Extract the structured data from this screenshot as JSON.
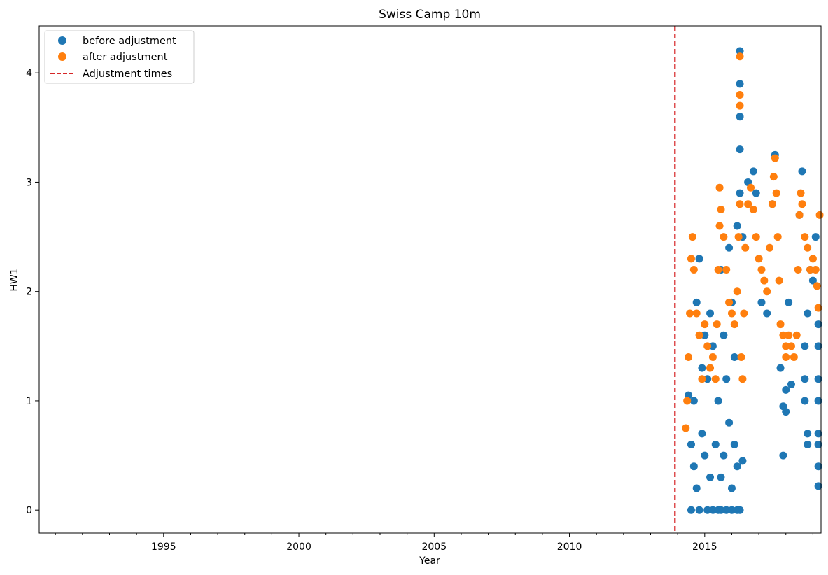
{
  "chart_data": {
    "type": "scatter",
    "title": "Swiss Camp 10m",
    "xlabel": "Year",
    "ylabel": "HW1",
    "xlim": [
      1990.4,
      2019.3
    ],
    "ylim": [
      -0.21,
      4.43
    ],
    "x_ticks": [
      1995,
      2000,
      2005,
      2010,
      2015
    ],
    "x_tick_labels": [
      "1995",
      "2000",
      "2005",
      "2010",
      "2015"
    ],
    "y_ticks": [
      0,
      1,
      2,
      3,
      4
    ],
    "y_tick_labels": [
      "0",
      "1",
      "2",
      "3",
      "4"
    ],
    "grid": false,
    "legend_position": "top-left",
    "series": [
      {
        "name": "before adjustment",
        "kind": "scatter",
        "color": "#1f77b4",
        "points": [
          [
            2014.4,
            1.05
          ],
          [
            2014.5,
            0.6
          ],
          [
            2014.5,
            0.0
          ],
          [
            2014.6,
            1.0
          ],
          [
            2014.6,
            0.4
          ],
          [
            2014.7,
            1.9
          ],
          [
            2014.7,
            0.2
          ],
          [
            2014.8,
            2.3
          ],
          [
            2014.8,
            0.0
          ],
          [
            2014.9,
            1.3
          ],
          [
            2014.9,
            0.7
          ],
          [
            2015.0,
            1.6
          ],
          [
            2015.0,
            0.5
          ],
          [
            2015.1,
            0.0
          ],
          [
            2015.1,
            1.2
          ],
          [
            2015.2,
            0.3
          ],
          [
            2015.2,
            1.8
          ],
          [
            2015.3,
            0.0
          ],
          [
            2015.3,
            1.5
          ],
          [
            2015.4,
            0.6
          ],
          [
            2015.5,
            0.0
          ],
          [
            2015.5,
            1.0
          ],
          [
            2015.6,
            2.2
          ],
          [
            2015.6,
            0.0
          ],
          [
            2015.6,
            0.3
          ],
          [
            2015.7,
            0.5
          ],
          [
            2015.7,
            1.6
          ],
          [
            2015.8,
            0.0
          ],
          [
            2015.8,
            1.2
          ],
          [
            2015.9,
            2.4
          ],
          [
            2015.9,
            0.8
          ],
          [
            2016.0,
            1.9
          ],
          [
            2016.0,
            0.2
          ],
          [
            2016.0,
            0.0
          ],
          [
            2016.1,
            1.4
          ],
          [
            2016.1,
            0.6
          ],
          [
            2016.2,
            2.6
          ],
          [
            2016.2,
            0.0
          ],
          [
            2016.2,
            0.4
          ],
          [
            2016.3,
            3.3
          ],
          [
            2016.3,
            3.6
          ],
          [
            2016.3,
            4.2
          ],
          [
            2016.3,
            3.9
          ],
          [
            2016.3,
            2.9
          ],
          [
            2016.3,
            0.0
          ],
          [
            2016.4,
            0.45
          ],
          [
            2016.4,
            2.5
          ],
          [
            2016.6,
            3.0
          ],
          [
            2016.8,
            3.1
          ],
          [
            2016.9,
            2.9
          ],
          [
            2017.1,
            1.9
          ],
          [
            2017.3,
            1.8
          ],
          [
            2017.5,
            2.8
          ],
          [
            2017.6,
            3.25
          ],
          [
            2017.8,
            1.3
          ],
          [
            2017.9,
            0.5
          ],
          [
            2017.9,
            0.95
          ],
          [
            2018.0,
            0.9
          ],
          [
            2018.0,
            1.1
          ],
          [
            2018.1,
            1.9
          ],
          [
            2018.2,
            1.15
          ],
          [
            2018.5,
            2.7
          ],
          [
            2018.6,
            3.1
          ],
          [
            2018.7,
            1.5
          ],
          [
            2018.7,
            1.2
          ],
          [
            2018.7,
            1.0
          ],
          [
            2018.8,
            1.8
          ],
          [
            2018.8,
            0.7
          ],
          [
            2018.8,
            0.6
          ],
          [
            2018.9,
            2.2
          ],
          [
            2019.0,
            2.1
          ],
          [
            2019.1,
            2.5
          ],
          [
            2019.2,
            1.7
          ],
          [
            2019.2,
            1.5
          ],
          [
            2019.2,
            1.0
          ],
          [
            2019.2,
            0.7
          ],
          [
            2019.2,
            0.6
          ],
          [
            2019.2,
            0.4
          ],
          [
            2019.2,
            0.22
          ],
          [
            2019.2,
            1.2
          ]
        ]
      },
      {
        "name": "after adjustment",
        "kind": "scatter",
        "color": "#ff7f0e",
        "points": [
          [
            2014.3,
            0.75
          ],
          [
            2014.35,
            1.0
          ],
          [
            2014.4,
            1.4
          ],
          [
            2014.45,
            1.8
          ],
          [
            2014.5,
            2.3
          ],
          [
            2014.55,
            2.5
          ],
          [
            2014.6,
            2.2
          ],
          [
            2014.7,
            1.8
          ],
          [
            2014.8,
            1.6
          ],
          [
            2014.9,
            1.2
          ],
          [
            2015.0,
            1.7
          ],
          [
            2015.1,
            1.5
          ],
          [
            2015.2,
            1.3
          ],
          [
            2015.3,
            1.4
          ],
          [
            2015.4,
            1.2
          ],
          [
            2015.45,
            1.7
          ],
          [
            2015.5,
            2.2
          ],
          [
            2015.55,
            2.6
          ],
          [
            2015.55,
            2.95
          ],
          [
            2015.6,
            2.75
          ],
          [
            2015.7,
            2.5
          ],
          [
            2015.8,
            2.2
          ],
          [
            2015.9,
            1.9
          ],
          [
            2016.0,
            1.8
          ],
          [
            2016.1,
            1.7
          ],
          [
            2016.2,
            2.0
          ],
          [
            2016.25,
            2.5
          ],
          [
            2016.3,
            2.8
          ],
          [
            2016.3,
            3.7
          ],
          [
            2016.3,
            3.8
          ],
          [
            2016.3,
            4.15
          ],
          [
            2016.35,
            1.4
          ],
          [
            2016.4,
            1.2
          ],
          [
            2016.45,
            1.8
          ],
          [
            2016.5,
            2.4
          ],
          [
            2016.6,
            2.8
          ],
          [
            2016.7,
            2.95
          ],
          [
            2016.8,
            2.75
          ],
          [
            2016.9,
            2.5
          ],
          [
            2017.0,
            2.3
          ],
          [
            2017.1,
            2.2
          ],
          [
            2017.2,
            2.1
          ],
          [
            2017.3,
            2.0
          ],
          [
            2017.4,
            2.4
          ],
          [
            2017.5,
            2.8
          ],
          [
            2017.55,
            3.05
          ],
          [
            2017.6,
            3.22
          ],
          [
            2017.65,
            2.9
          ],
          [
            2017.7,
            2.5
          ],
          [
            2017.75,
            2.1
          ],
          [
            2017.8,
            1.7
          ],
          [
            2017.9,
            1.6
          ],
          [
            2018.0,
            1.5
          ],
          [
            2018.0,
            1.4
          ],
          [
            2018.1,
            1.6
          ],
          [
            2018.2,
            1.5
          ],
          [
            2018.3,
            1.4
          ],
          [
            2018.4,
            1.6
          ],
          [
            2018.45,
            2.2
          ],
          [
            2018.5,
            2.7
          ],
          [
            2018.55,
            2.9
          ],
          [
            2018.6,
            2.8
          ],
          [
            2018.7,
            2.5
          ],
          [
            2018.8,
            2.4
          ],
          [
            2018.9,
            2.2
          ],
          [
            2019.0,
            2.3
          ],
          [
            2019.1,
            2.2
          ],
          [
            2019.15,
            2.05
          ],
          [
            2019.2,
            1.85
          ],
          [
            2019.25,
            2.7
          ]
        ]
      },
      {
        "name": "Adjustment times",
        "kind": "vline",
        "color": "#d62728",
        "x": [
          2013.9
        ]
      }
    ]
  }
}
